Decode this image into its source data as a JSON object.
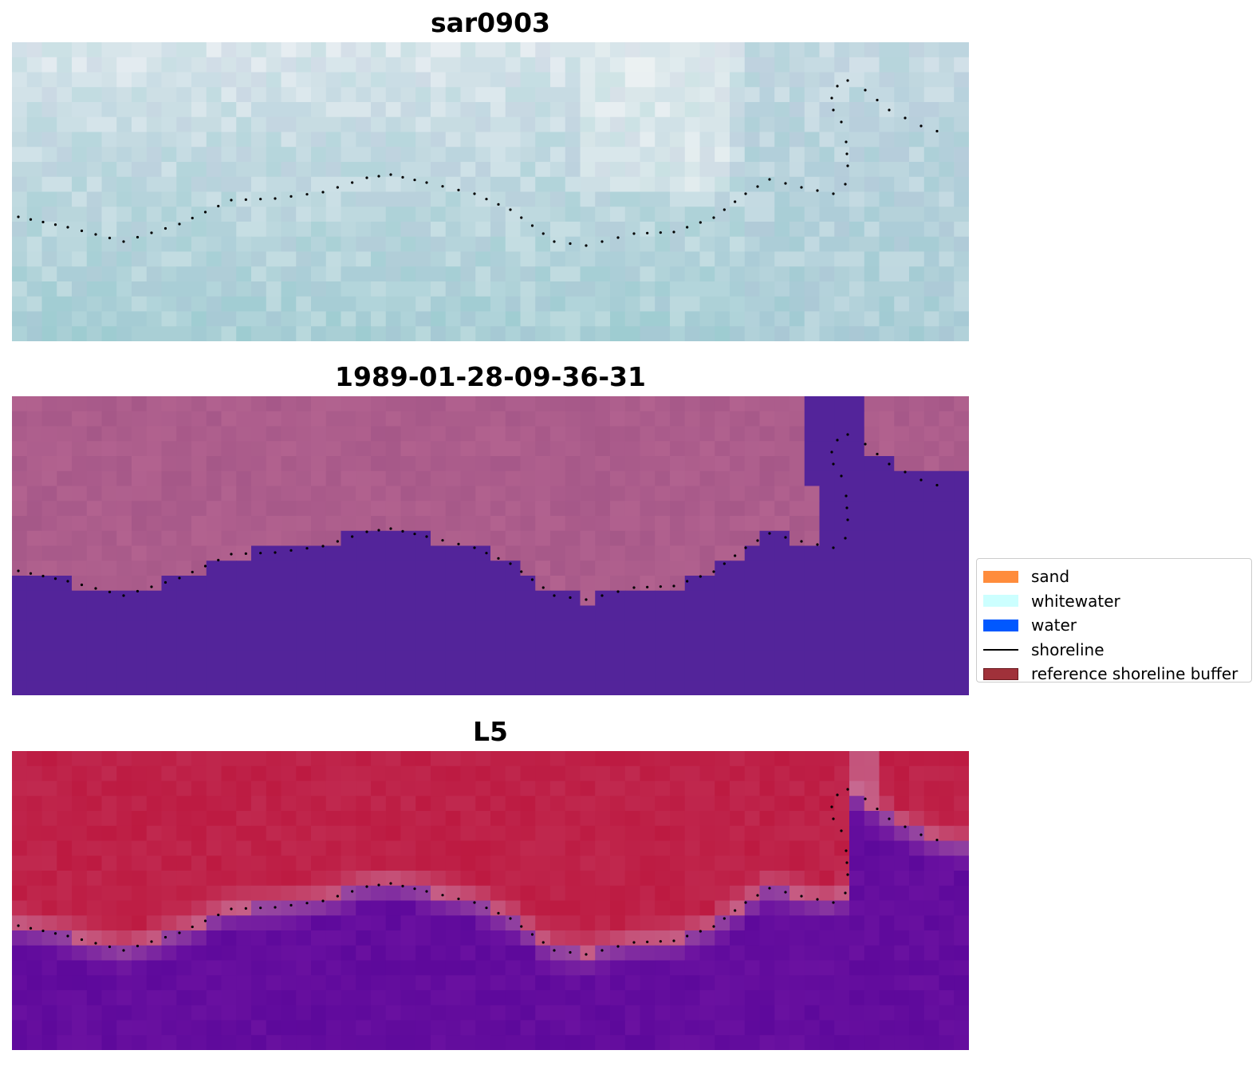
{
  "panels": [
    {
      "id": "sar",
      "title": "sar0903"
    },
    {
      "id": "classified",
      "title": "1989-01-28-09-36-31"
    },
    {
      "id": "l5",
      "title": "L5"
    }
  ],
  "legend": {
    "items": [
      {
        "label": "sand",
        "color": "#ff8c3c",
        "kind": "patch"
      },
      {
        "label": "whitewater",
        "color": "#ccffff",
        "kind": "patch"
      },
      {
        "label": "water",
        "color": "#0058ff",
        "kind": "patch"
      },
      {
        "label": "shoreline",
        "color": "#000000",
        "kind": "line"
      },
      {
        "label": "reference shoreline buffer",
        "color": "#a0313a",
        "kind": "patch"
      }
    ]
  },
  "colors": {
    "sar_tones": [
      "#bcd5dc",
      "#a9c9d6",
      "#c8dde4",
      "#e6edf1",
      "#b4c4d8",
      "#9ccbd0"
    ],
    "class_land": "#b2628f",
    "class_water": "#53249a",
    "l5_land": "#c0294f",
    "l5_water": "#6a11a0",
    "shoreline_dots": "#000000"
  }
}
